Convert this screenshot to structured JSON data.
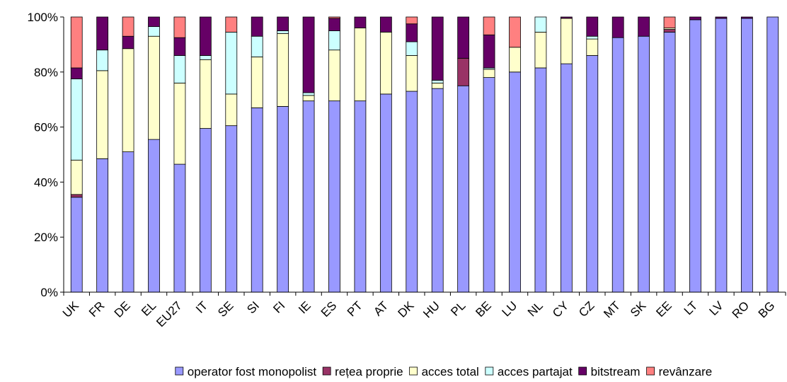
{
  "chart_data": {
    "type": "bar",
    "stacked": true,
    "percent": true,
    "title": "",
    "xlabel": "",
    "ylabel": "",
    "ylim": [
      0,
      100
    ],
    "y_ticks": [
      "0%",
      "20%",
      "40%",
      "60%",
      "80%",
      "100%"
    ],
    "grid": false,
    "legend_position": "bottom",
    "categories": [
      "UK",
      "FR",
      "DE",
      "EL",
      "EU27",
      "IT",
      "SE",
      "SI",
      "FI",
      "IE",
      "ES",
      "PT",
      "AT",
      "DK",
      "HU",
      "PL",
      "BE",
      "LU",
      "NL",
      "CY",
      "CZ",
      "MT",
      "SK",
      "EE",
      "LT",
      "LV",
      "RO",
      "BG"
    ],
    "series": [
      {
        "name": "operator fost monopolist",
        "color": "#9999ff",
        "values": [
          34.5,
          48.5,
          51,
          55.5,
          46.5,
          59.5,
          60.5,
          67,
          67.5,
          69.5,
          69.5,
          69.5,
          72,
          73,
          74,
          75,
          78,
          80,
          81.5,
          83,
          86,
          92.5,
          93,
          94.5,
          99,
          99.5,
          99.5,
          100
        ]
      },
      {
        "name": "rețea proprie",
        "color": "#993366",
        "values": [
          1,
          0,
          0,
          0,
          0,
          0,
          0,
          0,
          0,
          0,
          0,
          0,
          0,
          0,
          0,
          10,
          0,
          0,
          0,
          0,
          0,
          0,
          0,
          1,
          0,
          0,
          0,
          0
        ]
      },
      {
        "name": "acces total",
        "color": "#ffffcc",
        "values": [
          12.5,
          32,
          37.5,
          37.5,
          29.5,
          25,
          11.5,
          18.5,
          26.5,
          2,
          18.5,
          26.5,
          22.5,
          13,
          2,
          0,
          3,
          9,
          13,
          16.5,
          6,
          0,
          0,
          0.5,
          0,
          0,
          0,
          0
        ]
      },
      {
        "name": "acces partajat",
        "color": "#ccffff",
        "values": [
          29.5,
          7.5,
          0,
          3.5,
          10,
          1.5,
          22.5,
          7.5,
          1,
          1,
          7,
          0,
          0,
          5,
          1,
          0,
          0.5,
          0,
          5.5,
          0,
          1,
          0,
          0,
          0,
          0,
          0,
          0,
          0
        ]
      },
      {
        "name": "bitstream",
        "color": "#660066",
        "values": [
          4,
          12,
          4.5,
          3.5,
          6.5,
          14,
          0,
          7,
          5,
          27.5,
          4.5,
          4,
          5.5,
          6.5,
          23,
          15,
          12,
          0,
          0,
          0.5,
          7,
          7.5,
          7,
          0,
          1,
          0.5,
          0.5,
          0
        ]
      },
      {
        "name": "revânzare",
        "color": "#ff8080",
        "values": [
          18.5,
          0,
          7,
          0,
          7.5,
          0,
          5.5,
          0,
          0,
          0,
          0.5,
          0,
          0,
          2.5,
          0,
          0,
          6.5,
          11,
          0,
          0,
          0,
          0,
          0,
          4,
          0,
          0,
          0,
          0
        ]
      }
    ]
  }
}
